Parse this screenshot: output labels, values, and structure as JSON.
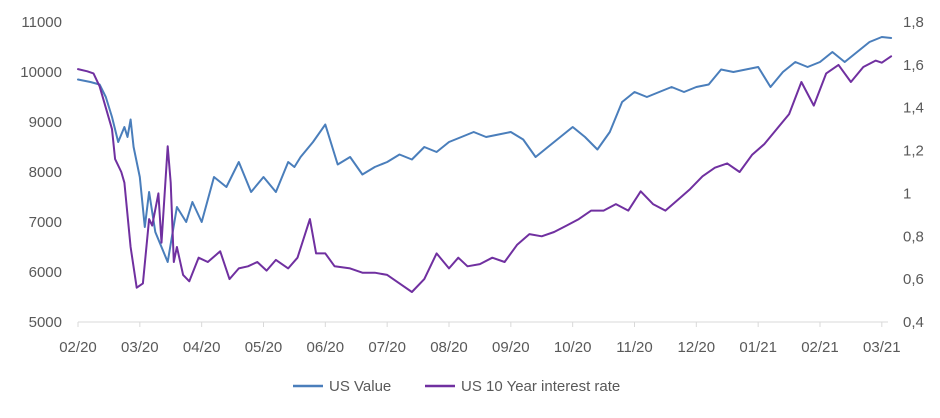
{
  "chart_data": {
    "type": "line",
    "title": "",
    "xlabel": "",
    "ylabel": "",
    "x_tick_labels": [
      "02/20",
      "03/20",
      "04/20",
      "05/20",
      "06/20",
      "07/20",
      "08/20",
      "09/20",
      "10/20",
      "11/20",
      "12/20",
      "01/21",
      "02/21",
      "03/21"
    ],
    "y_left": {
      "ylim": [
        5000,
        11000
      ],
      "ticks": [
        5000,
        6000,
        7000,
        8000,
        9000,
        10000,
        11000
      ],
      "tick_labels": [
        "5000",
        "6000",
        "7000",
        "8000",
        "9000",
        "10000",
        "11000"
      ]
    },
    "y_right": {
      "ylim": [
        0.4,
        1.8
      ],
      "ticks": [
        0.4,
        0.6,
        0.8,
        1.0,
        1.2,
        1.4,
        1.6,
        1.8
      ],
      "tick_labels": [
        "0,4",
        "0,6",
        "0,8",
        "1",
        "1,2",
        "1,4",
        "1,6",
        "1,8"
      ]
    },
    "grid": false,
    "legend_position": "bottom",
    "series": [
      {
        "name": "US Value",
        "axis": "left",
        "color": "#4a7ebb",
        "x": [
          0,
          0.2,
          0.35,
          0.45,
          0.55,
          0.65,
          0.75,
          0.8,
          0.85,
          0.9,
          1.0,
          1.08,
          1.15,
          1.25,
          1.35,
          1.45,
          1.6,
          1.75,
          1.85,
          2.0,
          2.2,
          2.4,
          2.6,
          2.8,
          3.0,
          3.2,
          3.4,
          3.5,
          3.6,
          3.8,
          4.0,
          4.2,
          4.4,
          4.6,
          4.8,
          5.0,
          5.2,
          5.4,
          5.6,
          5.8,
          6.0,
          6.2,
          6.4,
          6.6,
          6.8,
          7.0,
          7.2,
          7.4,
          7.6,
          7.8,
          8.0,
          8.2,
          8.4,
          8.6,
          8.8,
          9.0,
          9.2,
          9.4,
          9.6,
          9.8,
          10.0,
          10.2,
          10.4,
          10.6,
          10.8,
          11.0,
          11.2,
          11.4,
          11.6,
          11.8,
          12.0,
          12.2,
          12.4,
          12.6,
          12.8,
          13.0,
          13.15
        ],
        "values": [
          9850,
          9800,
          9750,
          9500,
          9100,
          8600,
          8900,
          8700,
          9050,
          8500,
          7900,
          6900,
          7600,
          6800,
          6500,
          6200,
          7300,
          7000,
          7400,
          7000,
          7900,
          7700,
          8200,
          7600,
          7900,
          7600,
          8200,
          8100,
          8300,
          8600,
          8950,
          8150,
          8300,
          7950,
          8100,
          8200,
          8350,
          8250,
          8500,
          8400,
          8600,
          8700,
          8800,
          8700,
          8750,
          8800,
          8650,
          8300,
          8500,
          8700,
          8900,
          8700,
          8450,
          8800,
          9400,
          9600,
          9500,
          9600,
          9700,
          9600,
          9700,
          9750,
          10050,
          10000,
          10050,
          10100,
          9700,
          10000,
          10200,
          10100,
          10200,
          10400,
          10200,
          10400,
          10600,
          10700,
          10680
        ]
      },
      {
        "name": "US 10 Year interest rate",
        "axis": "right",
        "color": "#7030a0",
        "x": [
          0,
          0.15,
          0.25,
          0.35,
          0.45,
          0.55,
          0.6,
          0.7,
          0.75,
          0.85,
          0.95,
          1.05,
          1.15,
          1.2,
          1.3,
          1.35,
          1.45,
          1.5,
          1.55,
          1.6,
          1.7,
          1.8,
          1.95,
          2.1,
          2.3,
          2.45,
          2.6,
          2.75,
          2.9,
          3.05,
          3.2,
          3.4,
          3.55,
          3.75,
          3.85,
          4.0,
          4.15,
          4.4,
          4.6,
          4.8,
          5.0,
          5.2,
          5.4,
          5.6,
          5.8,
          6.0,
          6.15,
          6.3,
          6.5,
          6.7,
          6.9,
          7.1,
          7.3,
          7.5,
          7.7,
          7.9,
          8.1,
          8.3,
          8.5,
          8.7,
          8.9,
          9.1,
          9.3,
          9.5,
          9.7,
          9.9,
          10.1,
          10.3,
          10.5,
          10.7,
          10.9,
          11.1,
          11.3,
          11.5,
          11.7,
          11.9,
          12.1,
          12.3,
          12.5,
          12.7,
          12.9,
          13.0,
          13.15
        ],
        "values": [
          1.58,
          1.57,
          1.56,
          1.5,
          1.4,
          1.3,
          1.16,
          1.1,
          1.05,
          0.75,
          0.56,
          0.58,
          0.88,
          0.85,
          1.0,
          0.77,
          1.22,
          1.05,
          0.68,
          0.75,
          0.62,
          0.59,
          0.7,
          0.68,
          0.73,
          0.6,
          0.65,
          0.66,
          0.68,
          0.64,
          0.69,
          0.65,
          0.7,
          0.88,
          0.72,
          0.72,
          0.66,
          0.65,
          0.63,
          0.63,
          0.62,
          0.58,
          0.54,
          0.6,
          0.72,
          0.65,
          0.7,
          0.66,
          0.67,
          0.7,
          0.68,
          0.76,
          0.81,
          0.8,
          0.82,
          0.85,
          0.88,
          0.92,
          0.92,
          0.95,
          0.92,
          1.01,
          0.95,
          0.92,
          0.97,
          1.02,
          1.08,
          1.12,
          1.14,
          1.1,
          1.18,
          1.23,
          1.3,
          1.37,
          1.52,
          1.41,
          1.56,
          1.6,
          1.52,
          1.59,
          1.62,
          1.61,
          1.64
        ]
      }
    ]
  }
}
